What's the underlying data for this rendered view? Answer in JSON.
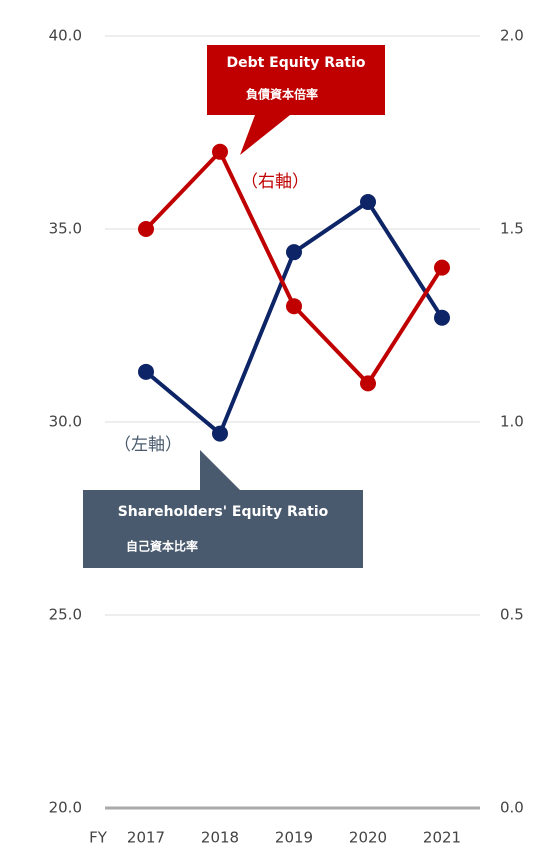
{
  "chart_data": {
    "type": "line",
    "x_label": "FY",
    "categories": [
      "2017",
      "2018",
      "2019",
      "2020",
      "2021"
    ],
    "series": [
      {
        "name": "Shareholders' Equity Ratio",
        "name_sub": "自己資本比率",
        "axis_note": "（左軸）",
        "color": "#0d2466",
        "box_color": "#4a5a6e",
        "values": [
          31.3,
          29.7,
          34.4,
          35.7,
          32.7
        ]
      },
      {
        "name": "Debt Equity Ratio",
        "name_sub": "負債資本倍率",
        "axis_note": "（右軸）",
        "color": "#c00000",
        "box_color": "#c00000",
        "axis": "y2",
        "values": [
          1.5,
          1.7,
          1.3,
          1.1,
          1.4
        ]
      }
    ],
    "ylim": [
      20,
      40
    ],
    "yticks": [
      {
        "value": 20,
        "label": "20.0"
      },
      {
        "value": 25,
        "label": "25.0"
      },
      {
        "value": 30,
        "label": "30.0"
      },
      {
        "value": 35,
        "label": "35.0"
      },
      {
        "value": 40,
        "label": "40.0"
      }
    ],
    "y2lim": [
      0,
      2
    ],
    "y2ticks": [
      {
        "value": 0,
        "label": "0.0"
      },
      {
        "value": 0.5,
        "label": "0.5"
      },
      {
        "value": 1,
        "label": "1.0"
      },
      {
        "value": 1.5,
        "label": "1.5"
      },
      {
        "value": 2,
        "label": "2.0"
      }
    ],
    "grid": true
  }
}
